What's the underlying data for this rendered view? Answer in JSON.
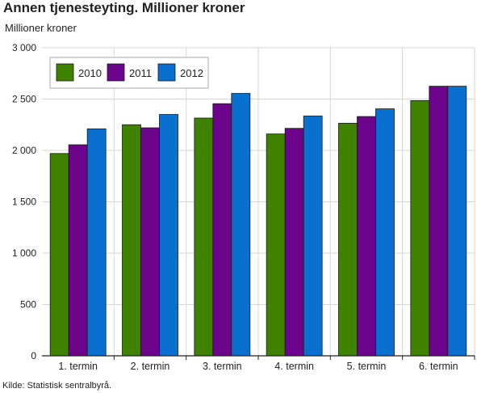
{
  "chart_data": {
    "type": "bar",
    "title": "Annen tjenesteyting. Millioner kroner",
    "ylabel": "Millioner kroner",
    "xlabel": "",
    "categories": [
      "1. termin",
      "2. termin",
      "3. termin",
      "4. termin",
      "5. termin",
      "6. termin"
    ],
    "series": [
      {
        "name": "2010",
        "color": "#3e8200",
        "values": [
          1970,
          2250,
          2315,
          2160,
          2265,
          2485
        ]
      },
      {
        "name": "2011",
        "color": "#6c048c",
        "values": [
          2055,
          2220,
          2455,
          2215,
          2330,
          2625
        ]
      },
      {
        "name": "2012",
        "color": "#0a70d0",
        "values": [
          2210,
          2350,
          2555,
          2335,
          2405,
          2625
        ]
      }
    ],
    "ylim": [
      0,
      3000
    ],
    "yticks": [
      0,
      500,
      1000,
      1500,
      2000,
      2500,
      3000
    ],
    "ytick_labels": [
      "0",
      "500",
      "1 000",
      "1 500",
      "2 000",
      "2 500",
      "3 000"
    ],
    "grid": true,
    "legend_position": "top-left"
  },
  "source": "Kilde: Statistisk sentralbyrå."
}
